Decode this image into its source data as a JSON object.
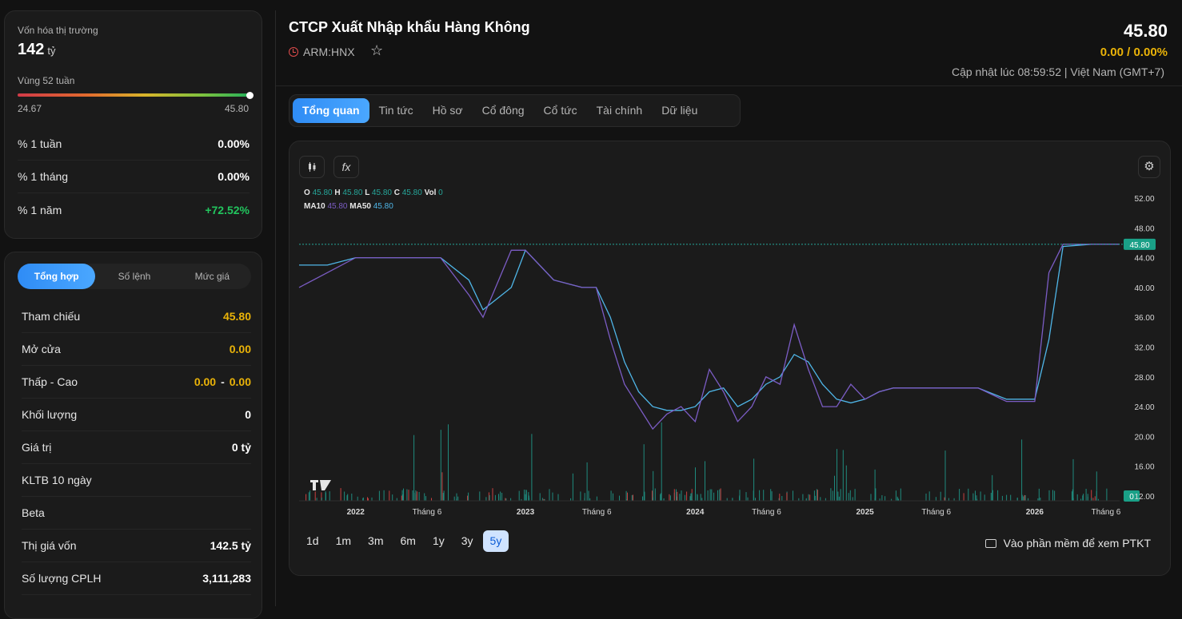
{
  "market_cap": {
    "label": "Vốn hóa thị trường",
    "value": "142",
    "unit": "tỷ"
  },
  "range52": {
    "label": "Vùng 52 tuần",
    "low": "24.67",
    "high": "45.80",
    "position": 1.0
  },
  "perf": [
    {
      "label": "% 1 tuần",
      "value": "0.00%"
    },
    {
      "label": "% 1 tháng",
      "value": "0.00%"
    },
    {
      "label": "% 1 năm",
      "value": "+72.52%"
    }
  ],
  "quote_tabs": [
    "Tổng hợp",
    "Số lệnh",
    "Mức giá"
  ],
  "quote": {
    "ref_label": "Tham chiếu",
    "ref_value": "45.80",
    "open_label": "Mở cửa",
    "open_value": "0.00",
    "lowhigh_label": "Thấp - Cao",
    "low_value": "0.00",
    "high_sep": "-",
    "high_value": "0.00",
    "vol_label": "Khối lượng",
    "vol_value": "0",
    "val_label": "Giá trị",
    "val_value": "0 tỷ",
    "kltb_label": "KLTB 10 ngày",
    "kltb_value": "",
    "beta_label": "Beta",
    "beta_value": "",
    "bookval_label": "Thị giá vốn",
    "bookval_value": "142.5 tỷ",
    "shares_label": "Số lượng CPLH",
    "shares_value": "3,111,283"
  },
  "header": {
    "title": "CTCP Xuất Nhập khẩu Hàng Không",
    "ticker": "ARM:HNX",
    "price": "45.80",
    "change": "0.00 / 0.00%",
    "updated": "Cập nhật lúc 08:59:52 | Việt Nam (GMT+7)"
  },
  "tabs": [
    "Tổng quan",
    "Tin tức",
    "Hồ sơ",
    "Cổ đông",
    "Cổ tức",
    "Tài chính",
    "Dữ liệu"
  ],
  "legend": {
    "o": "O",
    "o_v": "45.80",
    "h": "H",
    "h_v": "45.80",
    "l": "L",
    "l_v": "45.80",
    "c": "C",
    "c_v": "45.80",
    "vol": "Vol",
    "vol_v": "0",
    "ma10": "MA10",
    "ma10_v": "45.80",
    "ma50": "MA50",
    "ma50_v": "45.80"
  },
  "periods": [
    "1d",
    "1m",
    "3m",
    "6m",
    "1y",
    "3y",
    "5y"
  ],
  "active_period": "5y",
  "ptkt_label": "Vào phần mềm để xem PTKT",
  "colors": {
    "up": "#22c55e",
    "ref": "#eab308",
    "accent": "#2f8cf5",
    "ma10": "#7b5cc4",
    "ma50": "#4fb6e8"
  },
  "chart_data": {
    "type": "line",
    "x": [
      "2021-09",
      "2021-11",
      "2022-01",
      "2022-03",
      "2022-05",
      "2022-07",
      "2022-09",
      "2022-10",
      "2022-12",
      "2023-01",
      "2023-03",
      "2023-05",
      "2023-06",
      "2023-07",
      "2023-08",
      "2023-09",
      "2023-10",
      "2023-11",
      "2023-12",
      "2024-01",
      "2024-02",
      "2024-03",
      "2024-04",
      "2024-05",
      "2024-06",
      "2024-07",
      "2024-08",
      "2024-09",
      "2024-10",
      "2024-11",
      "2024-12",
      "2025-01",
      "2025-02",
      "2025-03",
      "2025-05",
      "2025-07",
      "2025-09",
      "2025-11",
      "2026-01",
      "2026-02",
      "2026-03",
      "2026-05",
      "2026-07"
    ],
    "series": [
      {
        "name": "MA50",
        "values": [
          43,
          43,
          44,
          44,
          44,
          44,
          41,
          37,
          40,
          45,
          41,
          40,
          40,
          36,
          30,
          26,
          24,
          23.5,
          23.5,
          24,
          26,
          26.5,
          24,
          25,
          27,
          28,
          31,
          30,
          27,
          25,
          24.5,
          25,
          26,
          26.5,
          26.5,
          26.5,
          26.5,
          25,
          25,
          33,
          45.5,
          45.8,
          45.8
        ]
      },
      {
        "name": "Close",
        "values": [
          40,
          42,
          44,
          44,
          44,
          44,
          39,
          36,
          45,
          45,
          41,
          40,
          40,
          33,
          27,
          24,
          21,
          23,
          24,
          22,
          29,
          26,
          22,
          24,
          28,
          27,
          35,
          29,
          24,
          24,
          27,
          25,
          26,
          26.5,
          26.5,
          26.5,
          26.5,
          24.7,
          24.7,
          42,
          45.8,
          45.8,
          45.8
        ]
      }
    ],
    "y_ticks": [
      "52.00",
      "48.00",
      "44.00",
      "40.00",
      "36.00",
      "32.00",
      "28.00",
      "24.00",
      "20.00",
      "16.00",
      "12.00"
    ],
    "x_ticks": [
      "2022",
      "Tháng 6",
      "2023",
      "Tháng 6",
      "2024",
      "Tháng 6",
      "2025",
      "Tháng 6",
      "2026",
      "Tháng 6"
    ],
    "ylim": [
      12,
      52
    ],
    "last_price_label": "45.80",
    "last_volume_label": "0",
    "grid": false
  }
}
